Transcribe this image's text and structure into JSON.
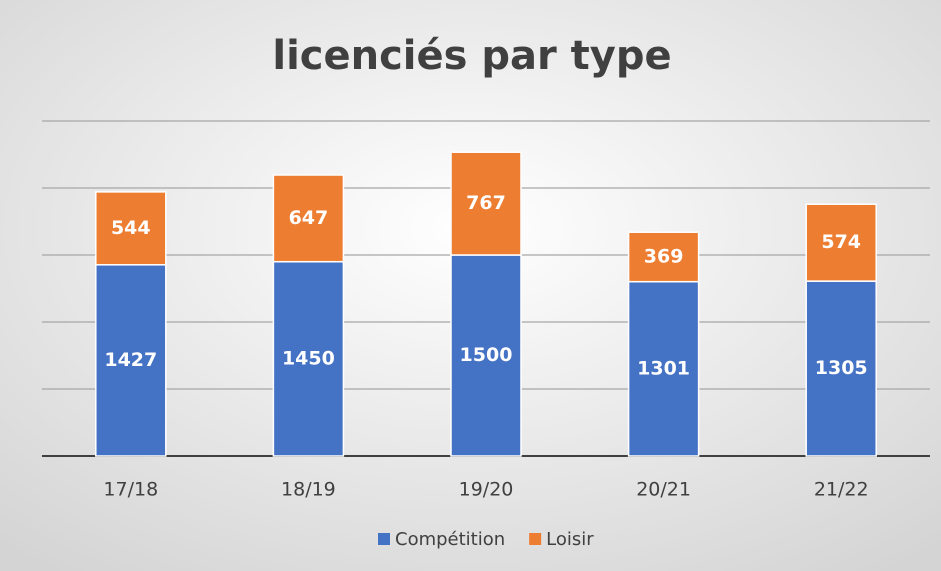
{
  "chart_data": {
    "type": "stacked_bar",
    "title": "licenciés par type",
    "categories": [
      "17/18",
      "18/19",
      "19/20",
      "20/21",
      "21/22"
    ],
    "series": [
      {
        "name": "Compétition",
        "color": "#4472c4",
        "values": [
          1427,
          1450,
          1500,
          1301,
          1305
        ]
      },
      {
        "name": "Loisir",
        "color": "#ed7d31",
        "values": [
          544,
          647,
          767,
          369,
          574
        ]
      }
    ],
    "ylim": [
      0,
      2500
    ],
    "yticks": [
      0,
      500,
      1000,
      1500,
      2000,
      2500
    ],
    "grid": true,
    "legend": "bottom"
  }
}
